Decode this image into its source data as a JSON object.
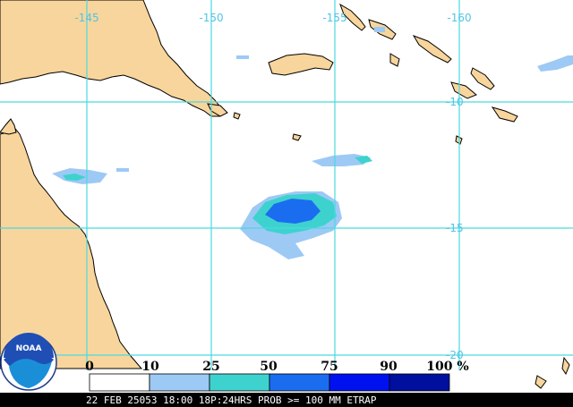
{
  "map": {
    "longitude_labels": [
      "-145",
      "-150",
      "-155",
      "-160"
    ],
    "latitude_labels": [
      "-10",
      "-15",
      "-20"
    ],
    "colors": {
      "ocean": "#ffffff",
      "land": "#f8d59c",
      "grid": "#4ad9e0",
      "coast": "#000000"
    }
  },
  "legend": {
    "labels": [
      "0",
      "10",
      "25",
      "50",
      "75",
      "90",
      "100 %"
    ],
    "colors": [
      "#ffffff",
      "#9dc9f5",
      "#3ed2cf",
      "#1b6df0",
      "#0011f0",
      "#000f9e"
    ]
  },
  "footer": {
    "text": "22 FEB 25053 18:00 18P:24HRS PROB >= 100 MM ETRAP",
    "background": "#000000"
  },
  "logo": {
    "text": "NOAA"
  }
}
